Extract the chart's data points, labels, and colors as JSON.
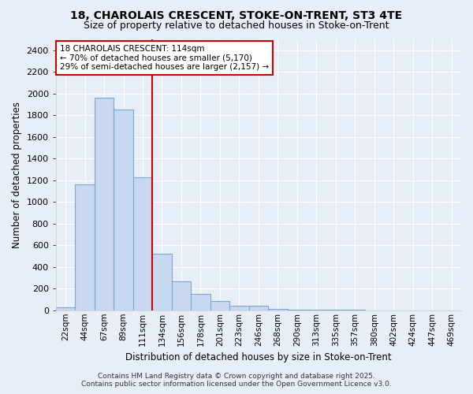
{
  "title_line1": "18, CHAROLAIS CRESCENT, STOKE-ON-TRENT, ST3 4TE",
  "title_line2": "Size of property relative to detached houses in Stoke-on-Trent",
  "xlabel": "Distribution of detached houses by size in Stoke-on-Trent",
  "ylabel": "Number of detached properties",
  "categories": [
    "22sqm",
    "44sqm",
    "67sqm",
    "89sqm",
    "111sqm",
    "134sqm",
    "156sqm",
    "178sqm",
    "201sqm",
    "223sqm",
    "246sqm",
    "268sqm",
    "290sqm",
    "313sqm",
    "335sqm",
    "357sqm",
    "380sqm",
    "402sqm",
    "424sqm",
    "447sqm",
    "469sqm"
  ],
  "values": [
    25,
    1160,
    1960,
    1850,
    1230,
    520,
    270,
    150,
    85,
    45,
    40,
    10,
    5,
    3,
    2,
    2,
    1,
    1,
    1,
    1,
    1
  ],
  "bar_color": "#c8d8f0",
  "bar_edge_color": "#7aaad0",
  "background_color": "#e8eef8",
  "grid_color": "#ffffff",
  "red_line_index": 4.5,
  "annotation_text": "18 CHAROLAIS CRESCENT: 114sqm\n← 70% of detached houses are smaller (5,170)\n29% of semi-detached houses are larger (2,157) →",
  "annotation_box_color": "#ffffff",
  "annotation_border_color": "#cc0000",
  "footer_line1": "Contains HM Land Registry data © Crown copyright and database right 2025.",
  "footer_line2": "Contains public sector information licensed under the Open Government Licence v3.0.",
  "ylim": [
    0,
    2500
  ],
  "yticks": [
    0,
    200,
    400,
    600,
    800,
    1000,
    1200,
    1400,
    1600,
    1800,
    2000,
    2200,
    2400
  ]
}
